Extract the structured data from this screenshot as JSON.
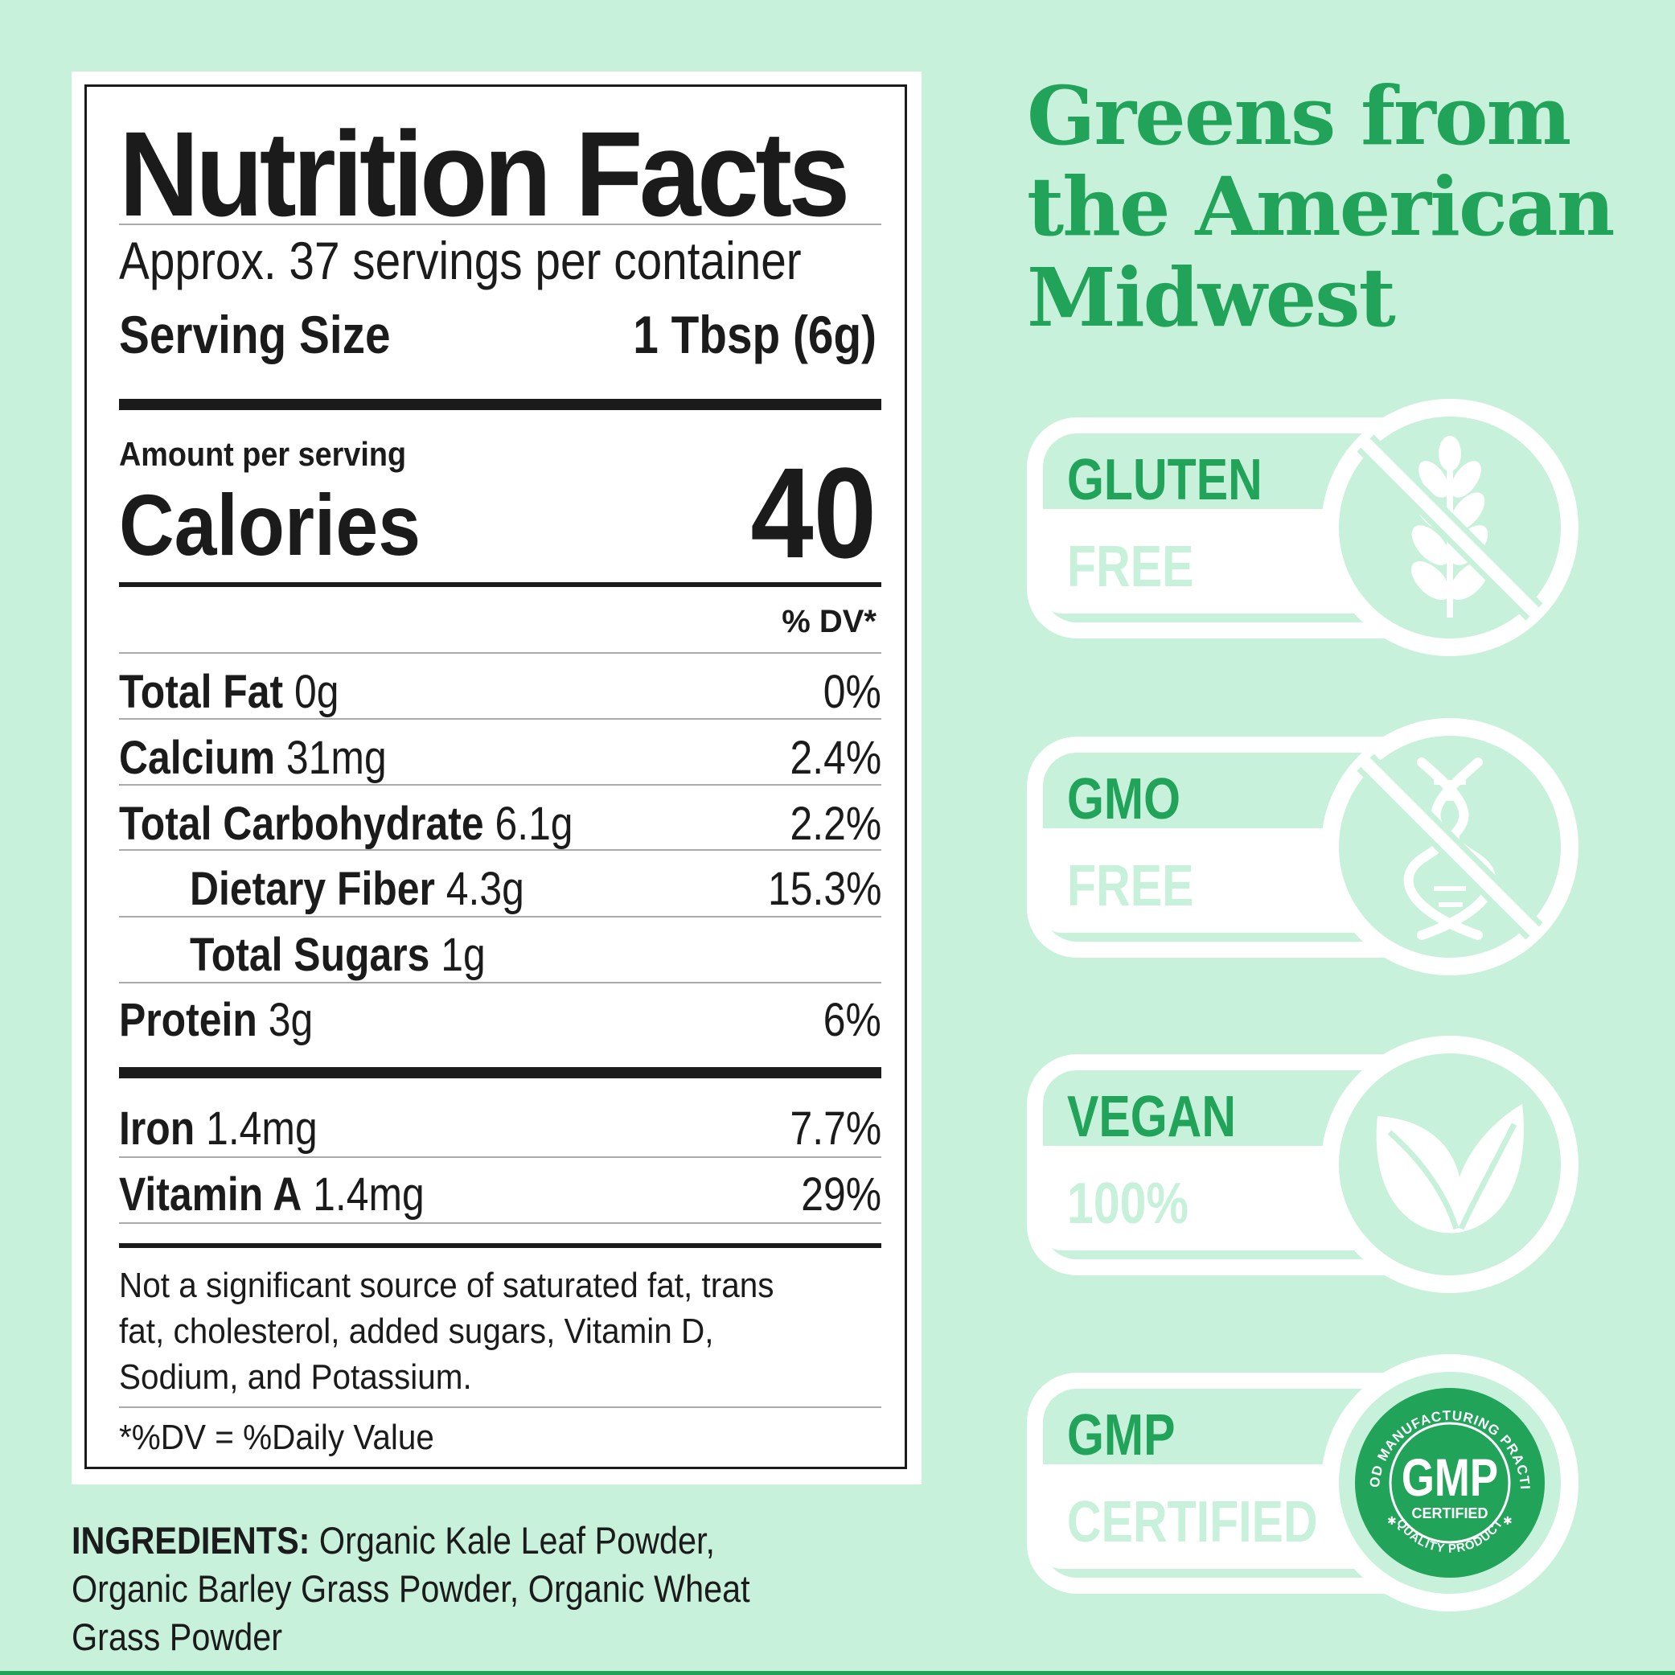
{
  "nutrition": {
    "title": "Nutrition Facts",
    "servings": "Approx. 37 servings per container",
    "serving_size_label": "Serving Size",
    "serving_size_value": "1 Tbsp (6g)",
    "amount_per_serving": "Amount per serving",
    "calories_label": "Calories",
    "calories_value": "40",
    "dv_header": "% DV*",
    "rows": [
      {
        "name": "Total Fat",
        "amount": "0g",
        "pct": "0%"
      },
      {
        "name": "Calcium",
        "amount": "31mg",
        "pct": "2.4%"
      },
      {
        "name": "Total Carbohydrate",
        "amount": "6.1g",
        "pct": "2.2%"
      },
      {
        "name": "Dietary Fiber",
        "amount": "4.3g",
        "pct": "15.3%"
      },
      {
        "name": "Total Sugars",
        "amount": "1g",
        "pct": ""
      },
      {
        "name": "Protein",
        "amount": "3g",
        "pct": "6%"
      },
      {
        "name": "Iron",
        "amount": "1.4mg",
        "pct": "7.7%"
      },
      {
        "name": "Vitamin A",
        "amount": "1.4mg",
        "pct": "29%"
      }
    ],
    "footer": "Not a significant source of saturated fat, trans fat, cholesterol, added sugars, Vitamin D, Sodium, and Potassium.",
    "footnote": "*%DV = %Daily Value"
  },
  "ingredients": {
    "label": "INGREDIENTS:",
    "text": "Organic Kale Leaf Powder, Organic Barley Grass Powder, Organic Wheat Grass Powder"
  },
  "headline": {
    "line1": "Greens from",
    "line2": "the American",
    "line3": "Midwest"
  },
  "badges": [
    {
      "top": "GLUTEN",
      "bottom": "FREE",
      "icon": "wheat-crossed-icon"
    },
    {
      "top": "GMO",
      "bottom": "FREE",
      "icon": "dna-crossed-icon"
    },
    {
      "top": "VEGAN",
      "bottom": "100%",
      "icon": "leaves-icon"
    },
    {
      "top": "GMP",
      "bottom": "CERTIFIED",
      "icon": "gmp-seal-icon"
    }
  ],
  "gmp_seal": {
    "arc_top": "GOOD MANUFACTURING PRACTICE",
    "center": "GMP",
    "sub": "CERTIFIED",
    "arc_bottom": "QUALITY PRODUCT"
  },
  "colors": {
    "background": "#c7f1da",
    "accent_green": "#22a35a",
    "text": "#1b1b1b",
    "white": "#ffffff"
  }
}
